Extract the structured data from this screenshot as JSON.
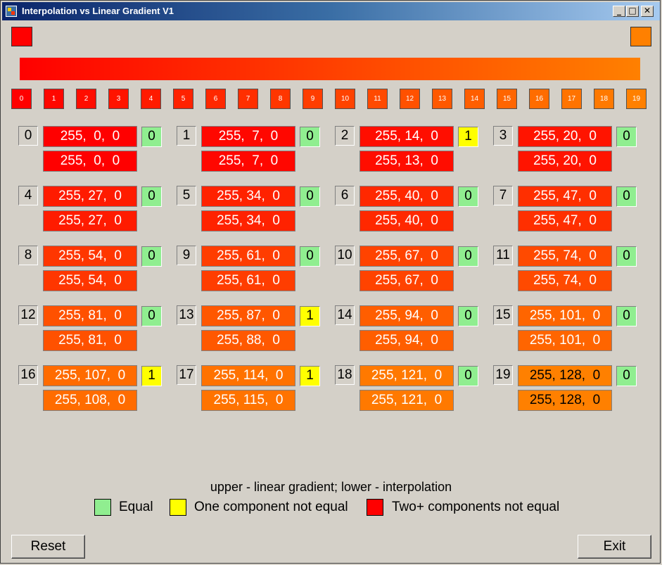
{
  "window": {
    "title": "Interpolation vs Linear Gradient V1",
    "controls": {
      "minimize": "_",
      "maximize": "□",
      "close": "✕"
    }
  },
  "colors": {
    "start": "#ff0000",
    "end": "#ff8000",
    "equal": "#90ee90",
    "one_not_equal": "#ffff00",
    "two_plus_not_equal": "#ff0000"
  },
  "steps": [
    {
      "index": "0",
      "upper": "255,  0,  0",
      "lower": "255,  0,  0",
      "diff": "0",
      "upper_color": "#ff0000",
      "lower_color": "#ff0000"
    },
    {
      "index": "1",
      "upper": "255,  7,  0",
      "lower": "255,  7,  0",
      "diff": "0",
      "upper_color": "#ff0700",
      "lower_color": "#ff0700"
    },
    {
      "index": "2",
      "upper": "255, 14,  0",
      "lower": "255, 13,  0",
      "diff": "1",
      "upper_color": "#ff0e00",
      "lower_color": "#ff0d00"
    },
    {
      "index": "3",
      "upper": "255, 20,  0",
      "lower": "255, 20,  0",
      "diff": "0",
      "upper_color": "#ff1400",
      "lower_color": "#ff1400"
    },
    {
      "index": "4",
      "upper": "255, 27,  0",
      "lower": "255, 27,  0",
      "diff": "0",
      "upper_color": "#ff1b00",
      "lower_color": "#ff1b00"
    },
    {
      "index": "5",
      "upper": "255, 34,  0",
      "lower": "255, 34,  0",
      "diff": "0",
      "upper_color": "#ff2200",
      "lower_color": "#ff2200"
    },
    {
      "index": "6",
      "upper": "255, 40,  0",
      "lower": "255, 40,  0",
      "diff": "0",
      "upper_color": "#ff2800",
      "lower_color": "#ff2800"
    },
    {
      "index": "7",
      "upper": "255, 47,  0",
      "lower": "255, 47,  0",
      "diff": "0",
      "upper_color": "#ff2f00",
      "lower_color": "#ff2f00"
    },
    {
      "index": "8",
      "upper": "255, 54,  0",
      "lower": "255, 54,  0",
      "diff": "0",
      "upper_color": "#ff3600",
      "lower_color": "#ff3600"
    },
    {
      "index": "9",
      "upper": "255, 61,  0",
      "lower": "255, 61,  0",
      "diff": "0",
      "upper_color": "#ff3d00",
      "lower_color": "#ff3d00"
    },
    {
      "index": "10",
      "upper": "255, 67,  0",
      "lower": "255, 67,  0",
      "diff": "0",
      "upper_color": "#ff4300",
      "lower_color": "#ff4300"
    },
    {
      "index": "11",
      "upper": "255, 74,  0",
      "lower": "255, 74,  0",
      "diff": "0",
      "upper_color": "#ff4a00",
      "lower_color": "#ff4a00"
    },
    {
      "index": "12",
      "upper": "255, 81,  0",
      "lower": "255, 81,  0",
      "diff": "0",
      "upper_color": "#ff5100",
      "lower_color": "#ff5100"
    },
    {
      "index": "13",
      "upper": "255, 87,  0",
      "lower": "255, 88,  0",
      "diff": "1",
      "upper_color": "#ff5700",
      "lower_color": "#ff5800"
    },
    {
      "index": "14",
      "upper": "255, 94,  0",
      "lower": "255, 94,  0",
      "diff": "0",
      "upper_color": "#ff5e00",
      "lower_color": "#ff5e00"
    },
    {
      "index": "15",
      "upper": "255, 101,  0",
      "lower": "255, 101,  0",
      "diff": "0",
      "upper_color": "#ff6500",
      "lower_color": "#ff6500"
    },
    {
      "index": "16",
      "upper": "255, 107,  0",
      "lower": "255, 108,  0",
      "diff": "1",
      "upper_color": "#ff6b00",
      "lower_color": "#ff6c00"
    },
    {
      "index": "17",
      "upper": "255, 114,  0",
      "lower": "255, 115,  0",
      "diff": "1",
      "upper_color": "#ff7200",
      "lower_color": "#ff7300"
    },
    {
      "index": "18",
      "upper": "255, 121,  0",
      "lower": "255, 121,  0",
      "diff": "0",
      "upper_color": "#ff7900",
      "lower_color": "#ff7900"
    },
    {
      "index": "19",
      "upper": "255, 128,  0",
      "lower": "255, 128,  0",
      "diff": "0",
      "upper_color": "#ff8000",
      "lower_color": "#ff8000"
    }
  ],
  "legend": {
    "caption": "upper - linear gradient; lower - interpolation",
    "equal": "Equal",
    "one_not_equal": "One component not equal",
    "two_plus_not_equal": "Two+ components not equal"
  },
  "buttons": {
    "reset": "Reset",
    "exit": "Exit"
  }
}
